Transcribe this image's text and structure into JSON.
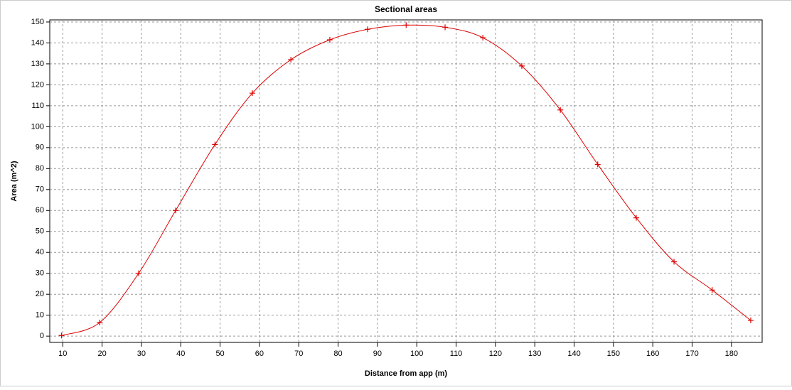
{
  "chart_data": {
    "type": "line",
    "title": "Sectional areas",
    "x_label": "Distance from app (m)",
    "y_label": "Area (m^2)",
    "x": [
      9.7,
      19.4,
      29.3,
      38.7,
      48.7,
      58.2,
      68.0,
      77.9,
      87.5,
      97.3,
      107.2,
      116.8,
      126.7,
      136.5,
      146.0,
      155.8,
      165.4,
      175.1,
      184.9
    ],
    "series": [
      {
        "name": "Area",
        "color": "#dd0000",
        "values": [
          0.3,
          6.5,
          30,
          60,
          91.5,
          116,
          132,
          141.5,
          146.5,
          148.5,
          147.5,
          142.5,
          129,
          108,
          82,
          56.5,
          35.5,
          22,
          7.5
        ]
      }
    ],
    "xlim": [
      6.7,
      187.8
    ],
    "xticks": [
      10,
      20,
      30,
      40,
      50,
      60,
      70,
      80,
      90,
      100,
      110,
      120,
      130,
      140,
      150,
      160,
      170,
      180
    ],
    "ylim": [
      -3,
      151
    ],
    "yticks": [
      0,
      10,
      20,
      30,
      40,
      50,
      60,
      70,
      80,
      90,
      100,
      110,
      120,
      130,
      140,
      150
    ],
    "grid": true,
    "markers": "cross"
  }
}
